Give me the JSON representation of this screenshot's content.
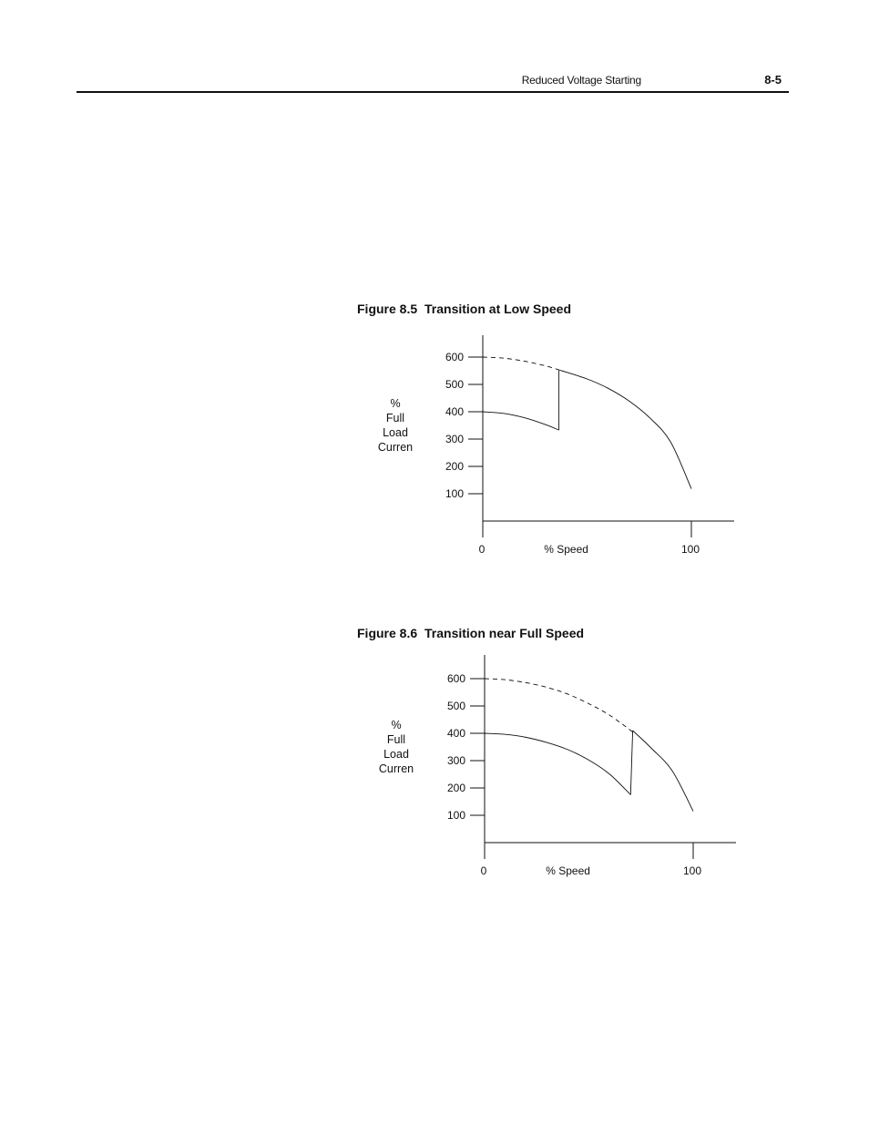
{
  "header": {
    "section_title": "Reduced Voltage Starting",
    "page_number": "8-5"
  },
  "chart_data": [
    {
      "type": "line",
      "figure_number": "Figure 8.5",
      "title": "Transition at Low Speed",
      "ylabel": [
        "%",
        "Full",
        "Load",
        "Curren"
      ],
      "xlabel": "% Speed",
      "x_ticks": [
        0,
        100
      ],
      "x_tick_labels": [
        "0",
        "100"
      ],
      "y_ticks": [
        100,
        200,
        300,
        400,
        500,
        600
      ],
      "y_tick_labels": [
        "100",
        "200",
        "300",
        "400",
        "500",
        "600"
      ],
      "xlim": [
        0,
        120
      ],
      "ylim": [
        0,
        660
      ],
      "grid": false,
      "series": [
        {
          "style": "dashed",
          "x": [
            0,
            10,
            20,
            30,
            37
          ],
          "y": [
            600,
            596,
            585,
            568,
            552
          ]
        },
        {
          "style": "solid",
          "x": [
            0,
            10,
            20,
            30,
            36.5
          ],
          "y": [
            400,
            394,
            378,
            353,
            333
          ]
        },
        {
          "style": "solid",
          "x": [
            36.5,
            36.5
          ],
          "y": [
            333,
            552
          ]
        },
        {
          "style": "solid",
          "x": [
            37,
            50,
            60,
            70,
            80,
            90,
            100
          ],
          "y": [
            552,
            520,
            486,
            440,
            378,
            290,
            118
          ]
        }
      ]
    },
    {
      "type": "line",
      "figure_number": "Figure 8.6",
      "title": "Transition near Full Speed",
      "ylabel": [
        "%",
        "Full",
        "Load",
        "Curren"
      ],
      "xlabel": "% Speed",
      "x_ticks": [
        0,
        100
      ],
      "x_tick_labels": [
        "0",
        "100"
      ],
      "y_ticks": [
        100,
        200,
        300,
        400,
        500,
        600
      ],
      "y_tick_labels": [
        "100",
        "200",
        "300",
        "400",
        "500",
        "600"
      ],
      "xlim": [
        0,
        120
      ],
      "ylim": [
        0,
        660
      ],
      "grid": false,
      "series": [
        {
          "style": "dashed",
          "x": [
            0,
            10,
            20,
            30,
            40,
            50,
            60,
            71
          ],
          "y": [
            600,
            596,
            585,
            568,
            543,
            508,
            466,
            405
          ]
        },
        {
          "style": "solid",
          "x": [
            0,
            10,
            20,
            30,
            40,
            50,
            60,
            70
          ],
          "y": [
            400,
            396,
            385,
            366,
            340,
            302,
            250,
            175
          ]
        },
        {
          "style": "solid",
          "x": [
            70,
            71
          ],
          "y": [
            175,
            410
          ]
        },
        {
          "style": "solid",
          "x": [
            71,
            80,
            90,
            100
          ],
          "y": [
            410,
            345,
            262,
            115
          ]
        }
      ]
    }
  ]
}
